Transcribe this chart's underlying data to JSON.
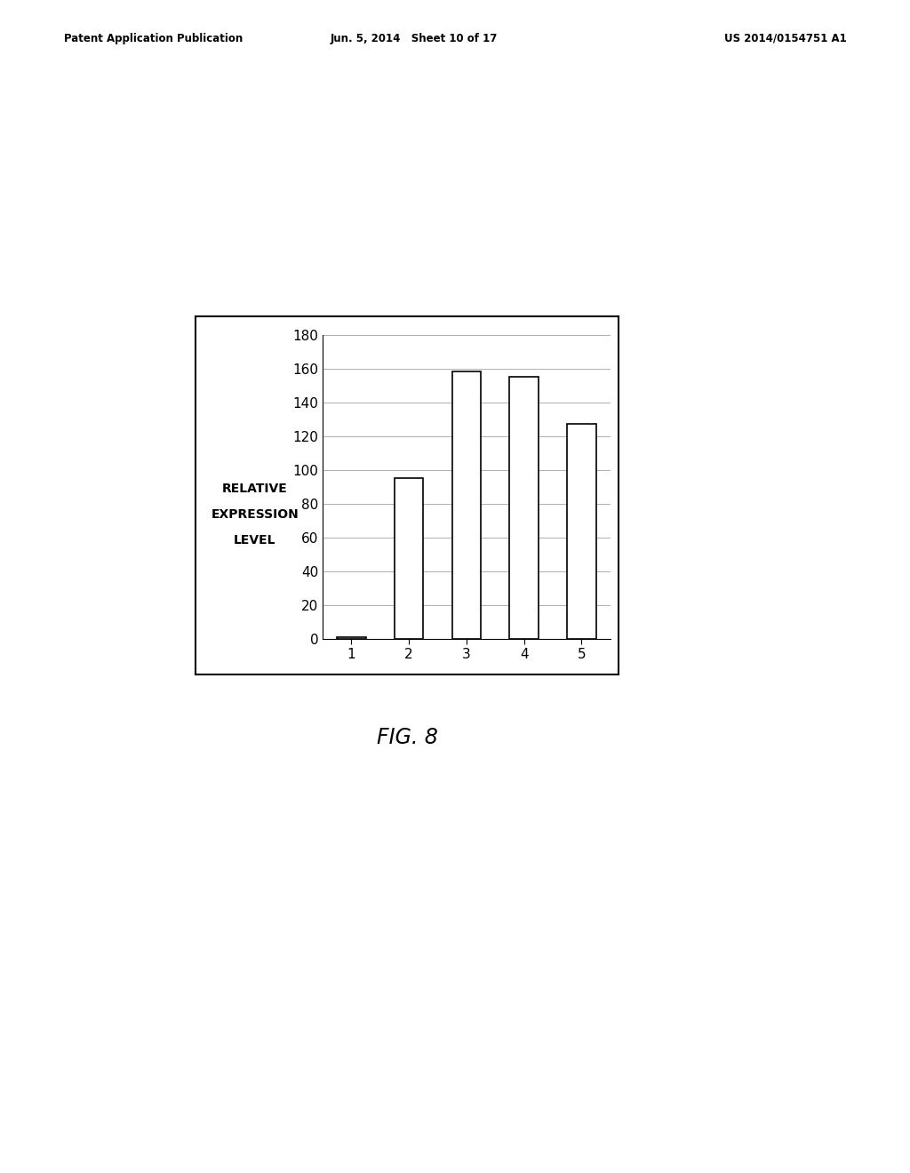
{
  "categories": [
    "1",
    "2",
    "3",
    "4",
    "5"
  ],
  "values": [
    1.0,
    95.0,
    158.0,
    155.0,
    127.0
  ],
  "bar_color": "#ffffff",
  "bar_edge_color": "#000000",
  "bar_linewidth": 1.2,
  "ylabel_line1": "RELATIVE",
  "ylabel_line2": "EXPRESSION",
  "ylabel_line3": "LEVEL",
  "ylim": [
    0,
    180
  ],
  "yticks": [
    0,
    20,
    40,
    60,
    80,
    100,
    120,
    140,
    160,
    180
  ],
  "grid_color": "#b0b0b0",
  "grid_linewidth": 0.7,
  "fig_caption": "FIG. 8",
  "header_left": "Patent Application Publication",
  "header_center": "Jun. 5, 2014   Sheet 10 of 17",
  "header_right": "US 2014/0154751 A1",
  "background_color": "#ffffff",
  "bar_width": 0.5
}
